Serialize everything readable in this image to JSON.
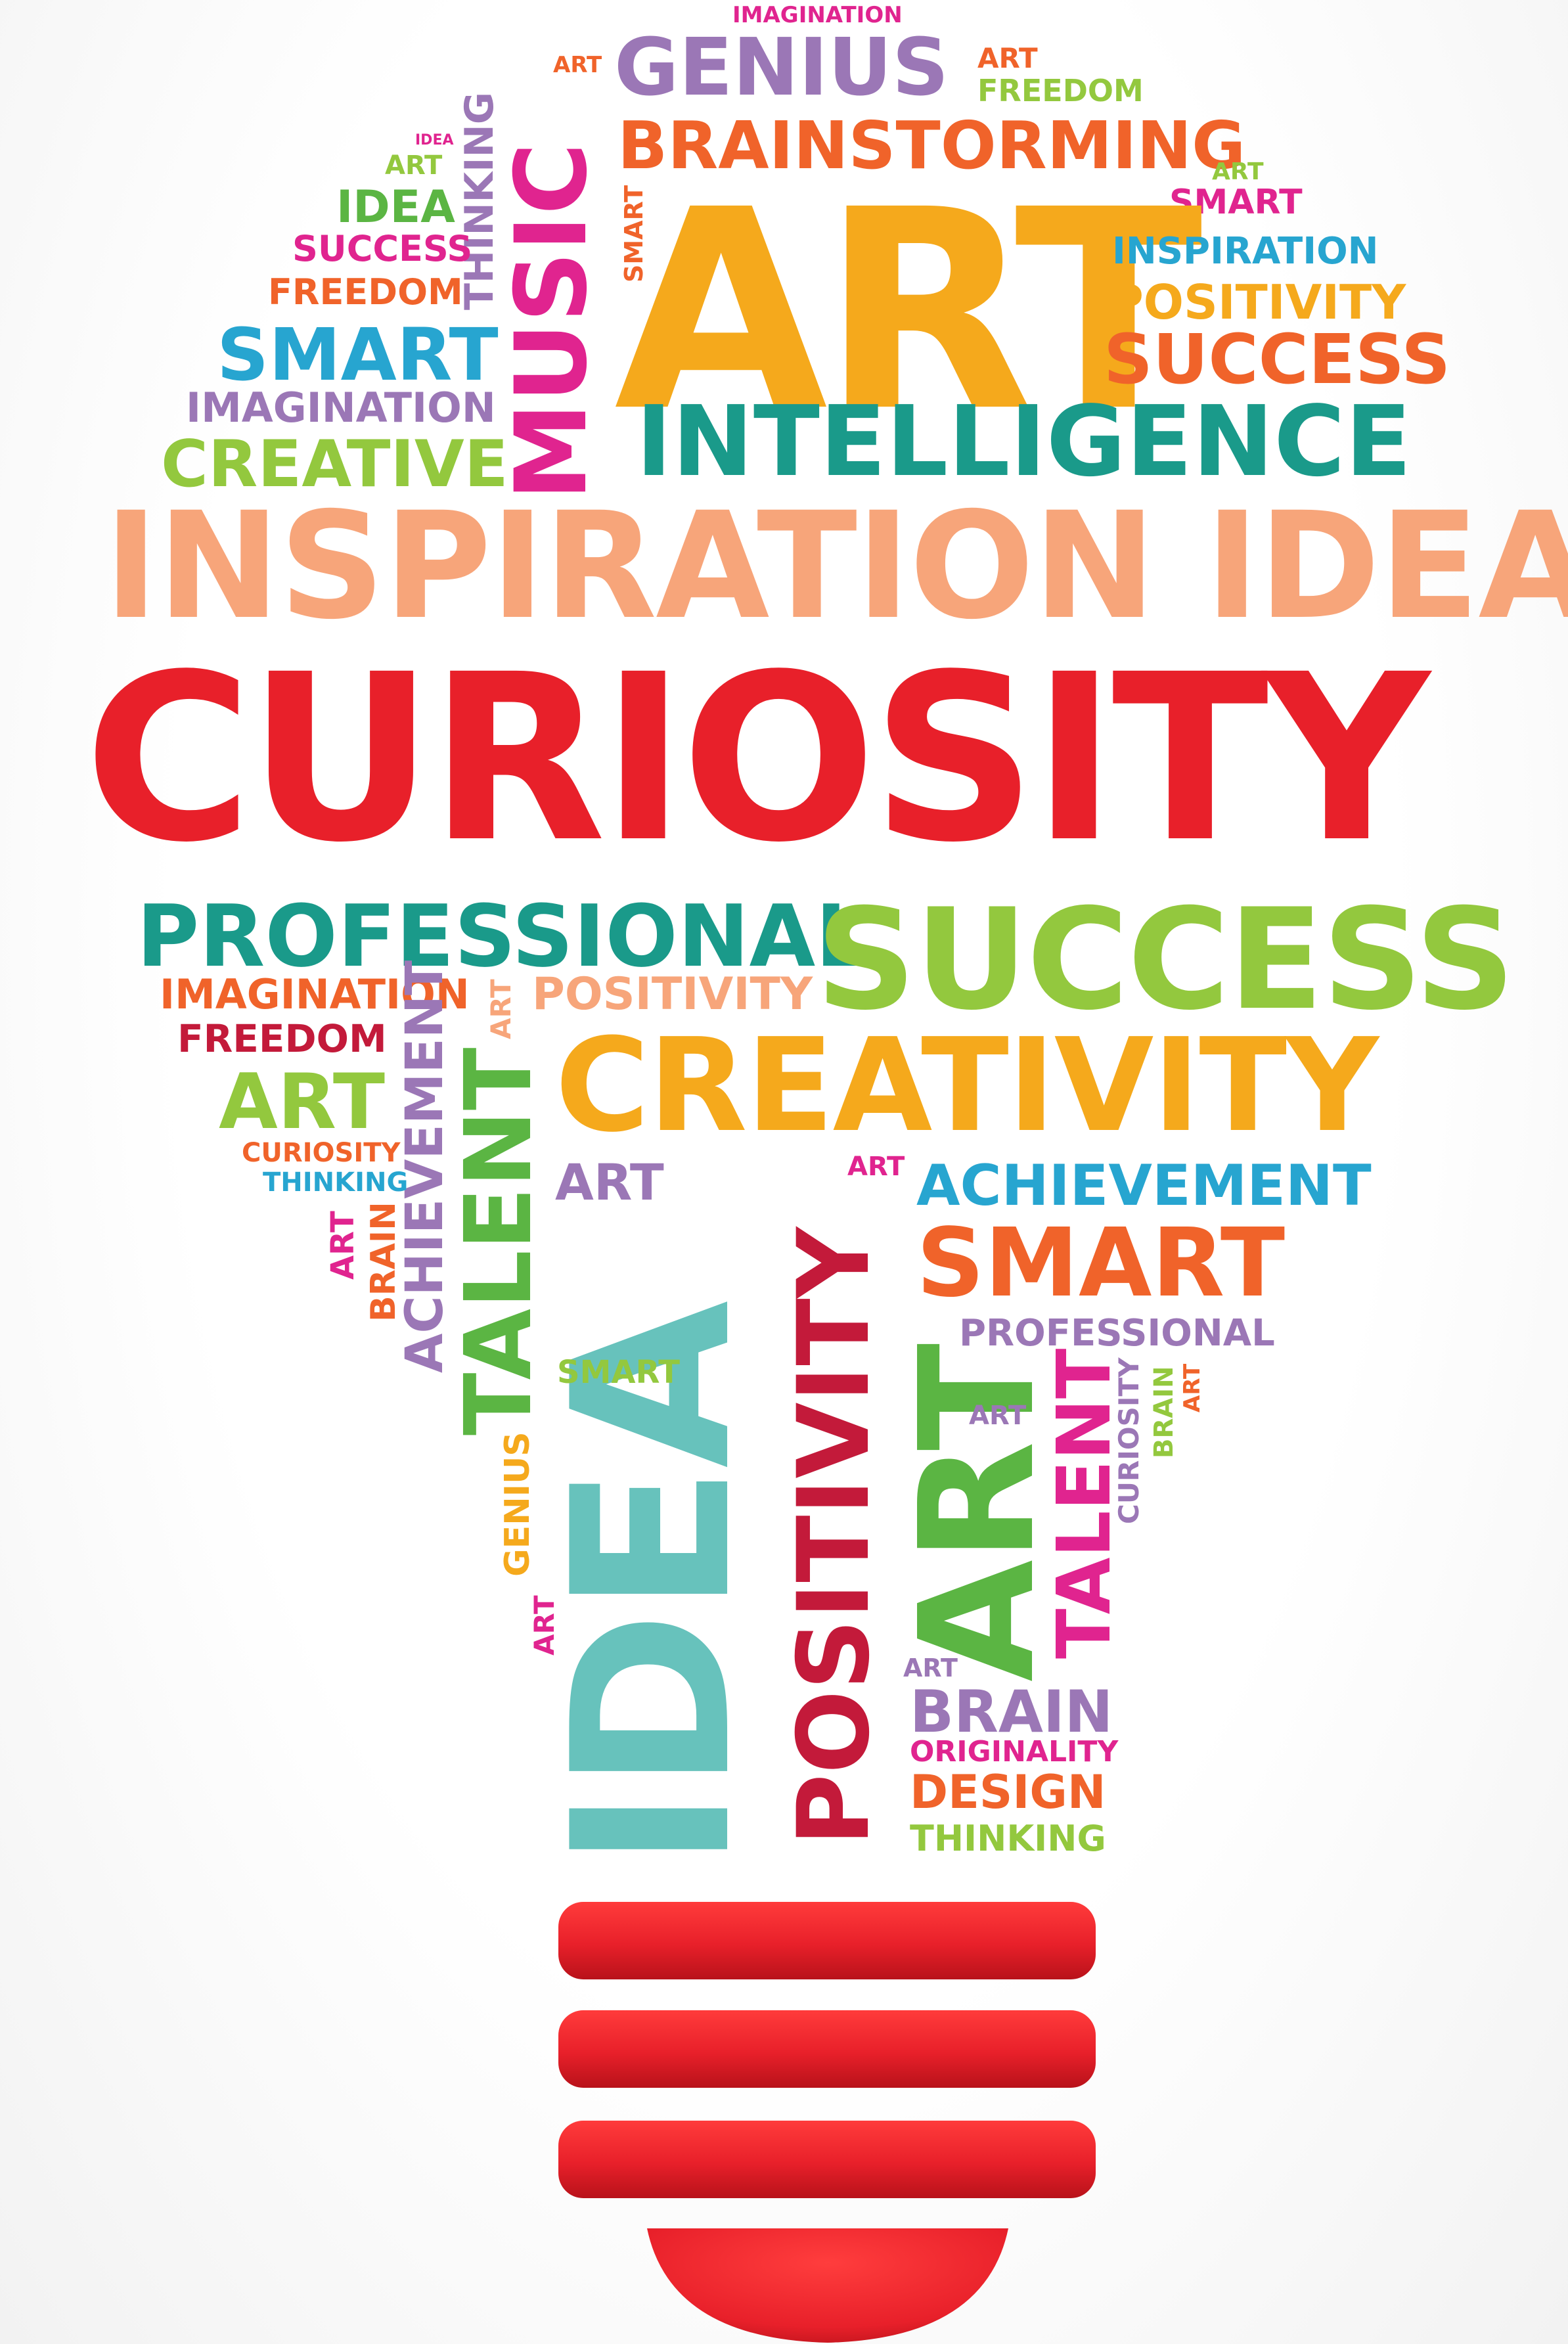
{
  "palette": {
    "red": "#e8202a",
    "orange": "#f0632a",
    "amber": "#f5a91c",
    "lime": "#93c83e",
    "green": "#5bb543",
    "teal": "#1a9a8a",
    "turquoise": "#67c2bc",
    "blue": "#27a5d0",
    "purple": "#9b77b6",
    "magenta": "#e0248f",
    "peach": "#f7a57a",
    "crimson": "#c31a3a"
  },
  "words": [
    {
      "text": "IMAGINATION",
      "color": "#e0248f"
    },
    {
      "text": "ART",
      "color": "#f0632a"
    },
    {
      "text": "GENIUS",
      "color": "#9b77b6"
    },
    {
      "text": "ART",
      "color": "#f0632a"
    },
    {
      "text": "FREEDOM",
      "color": "#93c83e"
    },
    {
      "text": "IDEA",
      "color": "#e0248f"
    },
    {
      "text": "ART",
      "color": "#93c83e"
    },
    {
      "text": "THINKING",
      "color": "#9b77b6"
    },
    {
      "text": "MUSIC",
      "color": "#e0248f"
    },
    {
      "text": "BRAINSTORMING",
      "color": "#f0632a"
    },
    {
      "text": "ART",
      "color": "#93c83e"
    },
    {
      "text": "SMART",
      "color": "#e0248f"
    },
    {
      "text": "IDEA",
      "color": "#5bb543"
    },
    {
      "text": "SUCCESS",
      "color": "#e0248f"
    },
    {
      "text": "SMART",
      "color": "#f0632a"
    },
    {
      "text": "ART",
      "color": "#f5a91c"
    },
    {
      "text": "INSPIRATION",
      "color": "#27a5d0"
    },
    {
      "text": "FREEDOM",
      "color": "#f0632a"
    },
    {
      "text": "POSITIVITY",
      "color": "#f5a91c"
    },
    {
      "text": "SMART",
      "color": "#27a5d0"
    },
    {
      "text": "SUCCESS",
      "color": "#f0632a"
    },
    {
      "text": "IMAGINATION",
      "color": "#9b77b6"
    },
    {
      "text": "INTELLIGENCE",
      "color": "#1a9a8a"
    },
    {
      "text": "CREATIVE",
      "color": "#93c83e"
    },
    {
      "text": "INSPIRATION IDEA",
      "color": "#f7a57a"
    },
    {
      "text": "CURIOSITY",
      "color": "#e8202a"
    },
    {
      "text": "PROFESSIONAL",
      "color": "#1a9a8a"
    },
    {
      "text": "SUCCESS",
      "color": "#93c83e"
    },
    {
      "text": "IMAGINATION",
      "color": "#f0632a"
    },
    {
      "text": "ART",
      "color": "#f7a57a"
    },
    {
      "text": "POSITIVITY",
      "color": "#f7a57a"
    },
    {
      "text": "FREEDOM",
      "color": "#c31a3a"
    },
    {
      "text": "ACHIEVEMENT",
      "color": "#9b77b6"
    },
    {
      "text": "TALENT",
      "color": "#5bb543"
    },
    {
      "text": "CREATIVITY",
      "color": "#f5a91c"
    },
    {
      "text": "ART",
      "color": "#93c83e"
    },
    {
      "text": "CURIOSITY",
      "color": "#f0632a"
    },
    {
      "text": "THINKING",
      "color": "#27a5d0"
    },
    {
      "text": "ART",
      "color": "#9b77b6"
    },
    {
      "text": "ART",
      "color": "#e0248f"
    },
    {
      "text": "ACHIEVEMENT",
      "color": "#27a5d0"
    },
    {
      "text": "ART",
      "color": "#e0248f"
    },
    {
      "text": "BRAIN",
      "color": "#f0632a"
    },
    {
      "text": "IDEA",
      "color": "#67c2bc"
    },
    {
      "text": "POSITIVITY",
      "color": "#c31a3a"
    },
    {
      "text": "SMART",
      "color": "#f0632a"
    },
    {
      "text": "PROFESSIONAL",
      "color": "#9b77b6"
    },
    {
      "text": "SMART",
      "color": "#93c83e"
    },
    {
      "text": "ART",
      "color": "#5bb543"
    },
    {
      "text": "TALENT",
      "color": "#e0248f"
    },
    {
      "text": "CURIOSITY",
      "color": "#9b77b6"
    },
    {
      "text": "BRAIN",
      "color": "#93c83e"
    },
    {
      "text": "ART",
      "color": "#f0632a"
    },
    {
      "text": "ART",
      "color": "#9b77b6"
    },
    {
      "text": "GENIUS",
      "color": "#f5a91c"
    },
    {
      "text": "ART",
      "color": "#e0248f"
    },
    {
      "text": "ART",
      "color": "#9b77b6"
    },
    {
      "text": "BRAIN",
      "color": "#9b77b6"
    },
    {
      "text": "ORIGINALITY",
      "color": "#e0248f"
    },
    {
      "text": "DESIGN",
      "color": "#f0632a"
    },
    {
      "text": "THINKING",
      "color": "#93c83e"
    }
  ],
  "bulb_base": {
    "stripe_color": "#e8202a",
    "shadow_color": "#b8121a"
  }
}
